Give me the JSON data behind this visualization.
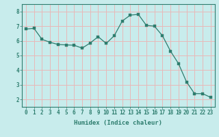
{
  "x": [
    0,
    1,
    2,
    3,
    4,
    5,
    6,
    7,
    8,
    9,
    10,
    11,
    12,
    13,
    14,
    15,
    16,
    17,
    18,
    19,
    20,
    21,
    22,
    23
  ],
  "y": [
    6.8,
    6.85,
    6.1,
    5.9,
    5.75,
    5.72,
    5.7,
    5.5,
    5.85,
    6.28,
    5.82,
    6.35,
    7.35,
    7.75,
    7.8,
    7.05,
    7.0,
    6.35,
    5.3,
    4.45,
    3.2,
    2.4,
    2.4,
    2.15
  ],
  "line_color": "#2e7d6e",
  "marker": "s",
  "marker_size": 2.5,
  "bg_color": "#c8ecec",
  "grid_color": "#e8b8b8",
  "xlabel": "Humidex (Indice chaleur)",
  "xlim": [
    -0.5,
    23.5
  ],
  "ylim": [
    1.5,
    8.5
  ],
  "yticks": [
    2,
    3,
    4,
    5,
    6,
    7,
    8
  ],
  "xticks": [
    0,
    1,
    2,
    3,
    4,
    5,
    6,
    7,
    8,
    9,
    10,
    11,
    12,
    13,
    14,
    15,
    16,
    17,
    18,
    19,
    20,
    21,
    22,
    23
  ],
  "xtick_labels": [
    "0",
    "1",
    "2",
    "3",
    "4",
    "5",
    "6",
    "7",
    "8",
    "9",
    "10",
    "11",
    "12",
    "13",
    "14",
    "15",
    "16",
    "17",
    "18",
    "19",
    "20",
    "21",
    "22",
    "23"
  ],
  "tick_fontsize": 5.5,
  "xlabel_fontsize": 6.5,
  "spine_color": "#2e7d6e"
}
